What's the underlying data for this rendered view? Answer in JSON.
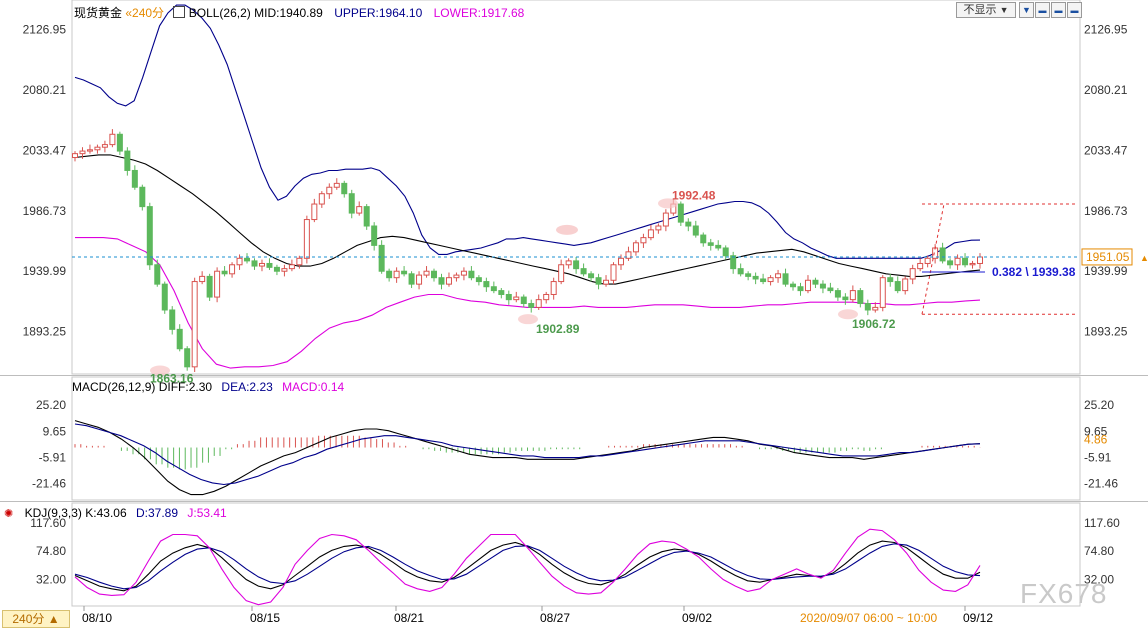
{
  "header": {
    "instrument": "现货黄金",
    "period": "«240分",
    "boll_label": "BOLL(26,2)",
    "mid": "MID:1940.89",
    "upper": "UPPER:1964.10",
    "lower": "LOWER:1917.68"
  },
  "controls": {
    "dropdown_label": "不显示",
    "dropdown_arrow": "▼",
    "btn_1": "▼",
    "btn_2": "▬",
    "btn_3": "▬",
    "btn_4": "▬"
  },
  "macd_header": {
    "label": "MACD(26,12,9)",
    "diff": "DIFF:2.30",
    "dea": "DEA:2.23",
    "macd": "MACD:0.14"
  },
  "kdj_header": {
    "label": "KDJ(9,3,3)",
    "k": "K:43.06",
    "d": "D:37.89",
    "j": "J:53.41"
  },
  "footer": {
    "period_button": "240分 ▲",
    "date_range": "2020/09/07  06:00 ~ 10:00",
    "watermark": "FX678"
  },
  "colors": {
    "up": "#d9534f",
    "down": "#5cb85c",
    "mid": "#000000",
    "upper": "#00008b",
    "lower": "#dd00dd",
    "dashed": "#1a8fd1"
  },
  "chart_data": [
    {
      "type": "candlestick",
      "title": "现货黄金 240分",
      "indicator": "BOLL(26,2)",
      "x_ticks": [
        "08/10",
        "08/15",
        "08/21",
        "08/27",
        "09/02",
        "09/12"
      ],
      "y_ticks": [
        2126.95,
        2080.21,
        2033.47,
        1986.73,
        1939.99,
        1893.25
      ],
      "ylim": [
        1862,
        2136
      ],
      "current_price": 1951.05,
      "annotations": [
        {
          "text": "1863.16",
          "value": 1863.16
        },
        {
          "text": "1902.89",
          "value": 1902.89
        },
        {
          "text": "1992.48",
          "value": 1992.48
        },
        {
          "text": "1906.72",
          "value": 1906.72
        },
        {
          "text": "0.382 \\ 1939.38",
          "value": 1939.38
        }
      ],
      "close": [
        2031,
        2033,
        2034,
        2036,
        2038,
        2046,
        2033,
        2018,
        2005,
        1990,
        1945,
        1930,
        1910,
        1895,
        1880,
        1866,
        1932,
        1936,
        1920,
        1940,
        1938,
        1945,
        1950,
        1948,
        1944,
        1946,
        1943,
        1940,
        1942,
        1945,
        1950,
        1980,
        1992,
        2000,
        2005,
        2008,
        2000,
        1985,
        1990,
        1975,
        1960,
        1940,
        1935,
        1940,
        1938,
        1930,
        1937,
        1940,
        1935,
        1930,
        1935,
        1937,
        1940,
        1935,
        1932,
        1928,
        1925,
        1922,
        1918,
        1920,
        1915,
        1912,
        1918,
        1922,
        1932,
        1945,
        1948,
        1942,
        1938,
        1935,
        1930,
        1933,
        1945,
        1950,
        1955,
        1962,
        1966,
        1972,
        1975,
        1985,
        1992,
        1978,
        1975,
        1968,
        1962,
        1960,
        1958,
        1952,
        1942,
        1938,
        1936,
        1934,
        1932,
        1935,
        1938,
        1930,
        1928,
        1925,
        1933,
        1930,
        1927,
        1925,
        1920,
        1918,
        1925,
        1915,
        1910,
        1912,
        1935,
        1932,
        1925,
        1934,
        1942,
        1946,
        1950,
        1958,
        1948,
        1945,
        1950,
        1945,
        1946,
        1951
      ],
      "series": [
        {
          "name": "UPPER",
          "values": [
            2090,
            2088,
            2085,
            2082,
            2075,
            2070,
            2068,
            2072,
            2090,
            2110,
            2130,
            2140,
            2146,
            2146,
            2142,
            2136,
            2128,
            2115,
            2100,
            2080,
            2060,
            2040,
            2020,
            2005,
            1995,
            1998,
            2006,
            2012,
            2015,
            2016,
            2018,
            2018,
            2019,
            2019,
            2019,
            2020,
            2018,
            2012,
            2006,
            1998,
            1985,
            1968,
            1958,
            1953,
            1953,
            1955,
            1956,
            1957,
            1958,
            1960,
            1962,
            1965,
            1965,
            1966,
            1965,
            1964,
            1963,
            1962,
            1961,
            1960,
            1961,
            1962,
            1964,
            1966,
            1968,
            1970,
            1972,
            1974,
            1976,
            1978,
            1980,
            1982,
            1984,
            1986,
            1988,
            1990,
            1992,
            1993,
            1994,
            1994,
            1993,
            1990,
            1985,
            1978,
            1970,
            1965,
            1962,
            1958,
            1955,
            1952,
            1950,
            1950,
            1950,
            1950,
            1950,
            1950,
            1950,
            1950,
            1950,
            1950,
            1950,
            1952,
            1955,
            1958,
            1962,
            1963,
            1964,
            1964.1
          ]
        },
        {
          "name": "MID",
          "values": [
            2028,
            2029,
            2030,
            2030,
            2028,
            2026,
            2023,
            2018,
            2012,
            2006,
            2000,
            1993,
            1986,
            1978,
            1970,
            1962,
            1955,
            1950,
            1946,
            1944,
            1944,
            1946,
            1950,
            1955,
            1960,
            1963,
            1966,
            1967,
            1966,
            1964,
            1962,
            1960,
            1958,
            1956,
            1954,
            1952,
            1950,
            1948,
            1946,
            1944,
            1942,
            1940,
            1938,
            1935,
            1932,
            1930,
            1930,
            1932,
            1934,
            1936,
            1938,
            1940,
            1942,
            1944,
            1946,
            1948,
            1950,
            1952,
            1954,
            1955,
            1956,
            1957,
            1955,
            1952,
            1949,
            1946,
            1944,
            1942,
            1940,
            1938,
            1937,
            1936,
            1936,
            1937,
            1938,
            1939,
            1940,
            1940.89
          ]
        },
        {
          "name": "LOWER",
          "values": [
            1966,
            1966,
            1966,
            1965,
            1960,
            1955,
            1945,
            1925,
            1900,
            1880,
            1868,
            1865,
            1866,
            1866,
            1867,
            1870,
            1878,
            1888,
            1896,
            1900,
            1902,
            1906,
            1912,
            1916,
            1920,
            1922,
            1922,
            1919,
            1917,
            1916,
            1914,
            1913,
            1912,
            1912,
            1912,
            1912,
            1913,
            1912,
            1912,
            1912,
            1913,
            1914,
            1914,
            1914,
            1913,
            1912,
            1912,
            1912,
            1913,
            1914,
            1914,
            1915,
            1916,
            1916,
            1916,
            1916,
            1915,
            1915,
            1914,
            1914,
            1915,
            1916,
            1916,
            1917,
            1917.68
          ]
        }
      ]
    },
    {
      "type": "line",
      "title": "MACD(26,12,9)",
      "y_ticks": [
        25.2,
        9.65,
        -5.91,
        -21.46
      ],
      "ylim": [
        -30,
        33
      ],
      "current_macd": 4.86,
      "series": [
        {
          "name": "DIFF",
          "values": [
            16,
            14,
            12,
            9,
            5,
            0,
            -6,
            -13,
            -20,
            -25,
            -28,
            -28,
            -26,
            -23,
            -19,
            -15,
            -11,
            -8,
            -5,
            -3,
            0,
            3,
            6,
            8,
            10,
            11,
            11,
            10,
            8,
            6,
            4,
            2,
            0,
            -2,
            -4,
            -5,
            -6,
            -6,
            -6,
            -7,
            -7,
            -7,
            -7,
            -7,
            -6,
            -5,
            -4,
            -3,
            -2,
            0,
            1,
            2,
            3,
            4,
            5,
            6,
            6,
            5,
            4,
            2,
            1,
            -1,
            -3,
            -4,
            -5,
            -6,
            -6,
            -6,
            -7,
            -6,
            -5,
            -4,
            -3,
            -2,
            -1,
            0,
            1,
            2,
            2.3
          ]
        },
        {
          "name": "DEA",
          "values": [
            14,
            13,
            11,
            9,
            7,
            4,
            1,
            -3,
            -8,
            -12,
            -16,
            -19,
            -21,
            -22,
            -21,
            -19,
            -17,
            -14,
            -11,
            -9,
            -6,
            -4,
            -1,
            1,
            3,
            5,
            6,
            7,
            7,
            6,
            5,
            4,
            3,
            1,
            0,
            -1,
            -2,
            -3,
            -4,
            -5,
            -5,
            -6,
            -6,
            -6,
            -6,
            -5,
            -5,
            -4,
            -3,
            -2,
            -1,
            0,
            1,
            2,
            3,
            4,
            4,
            4,
            4,
            3,
            2,
            1,
            0,
            -1,
            -2,
            -3,
            -4,
            -5,
            -5,
            -5,
            -5,
            -4,
            -3,
            -3,
            -2,
            -1,
            0,
            1,
            2,
            2.23
          ]
        },
        {
          "name": "MACD",
          "values": [
            2,
            1,
            1,
            0,
            -2,
            -4,
            -7,
            -10,
            -12,
            -13,
            -12,
            -9,
            -5,
            -1,
            2,
            4,
            6,
            6,
            6,
            6,
            6,
            7,
            7,
            7,
            7,
            6,
            5,
            3,
            1,
            0,
            -1,
            -2,
            -3,
            -3,
            -4,
            -4,
            -4,
            -3,
            -2,
            -2,
            -2,
            -1,
            -1,
            -1,
            0,
            0,
            1,
            1,
            1,
            2,
            2,
            2,
            2,
            2,
            2,
            2,
            2,
            1,
            0,
            -1,
            -1,
            -2,
            -3,
            -3,
            -3,
            -3,
            -2,
            -1,
            -2,
            -1,
            0,
            0,
            0,
            1,
            1,
            1,
            1,
            1,
            0.14
          ]
        }
      ]
    },
    {
      "type": "line",
      "title": "KDJ(9,3,3)",
      "y_ticks": [
        117.6,
        74.8,
        32.0
      ],
      "ylim": [
        -5,
        128
      ],
      "series": [
        {
          "name": "K",
          "values": [
            38,
            30,
            22,
            18,
            15,
            22,
            40,
            60,
            72,
            80,
            85,
            80,
            65,
            48,
            32,
            22,
            18,
            24,
            38,
            52,
            66,
            76,
            82,
            84,
            80,
            70,
            58,
            45,
            36,
            30,
            28,
            35,
            48,
            62,
            76,
            84,
            88,
            82,
            70,
            55,
            42,
            32,
            26,
            24,
            30,
            40,
            54,
            66,
            74,
            78,
            76,
            70,
            60,
            48,
            38,
            30,
            28,
            32,
            36,
            40,
            38,
            36,
            42,
            56,
            72,
            84,
            90,
            88,
            80,
            66,
            52,
            40,
            34,
            34,
            43.06
          ]
        },
        {
          "name": "D",
          "values": [
            40,
            35,
            28,
            22,
            18,
            20,
            30,
            45,
            58,
            70,
            78,
            80,
            74,
            62,
            48,
            36,
            28,
            26,
            30,
            40,
            52,
            64,
            74,
            80,
            82,
            76,
            66,
            55,
            45,
            38,
            32,
            33,
            40,
            52,
            64,
            76,
            82,
            83,
            76,
            64,
            52,
            42,
            34,
            30,
            31,
            36,
            46,
            56,
            66,
            73,
            75,
            72,
            66,
            56,
            46,
            38,
            33,
            32,
            34,
            36,
            37,
            37,
            40,
            48,
            60,
            72,
            82,
            86,
            84,
            76,
            64,
            52,
            44,
            39,
            37.89
          ]
        },
        {
          "name": "J",
          "values": [
            36,
            20,
            10,
            8,
            9,
            28,
            60,
            90,
            100,
            100,
            98,
            80,
            48,
            20,
            0,
            -6,
            -2,
            20,
            55,
            76,
            94,
            100,
            98,
            92,
            76,
            58,
            42,
            25,
            18,
            14,
            20,
            40,
            64,
            82,
            100,
            100,
            100,
            80,
            58,
            37,
            22,
            12,
            10,
            12,
            28,
            48,
            70,
            86,
            90,
            88,
            78,
            66,
            48,
            32,
            22,
            14,
            18,
            32,
            40,
            48,
            40,
            34,
            46,
            72,
            96,
            108,
            106,
            92,
            72,
            46,
            28,
            16,
            14,
            24,
            53.41
          ]
        }
      ]
    }
  ]
}
